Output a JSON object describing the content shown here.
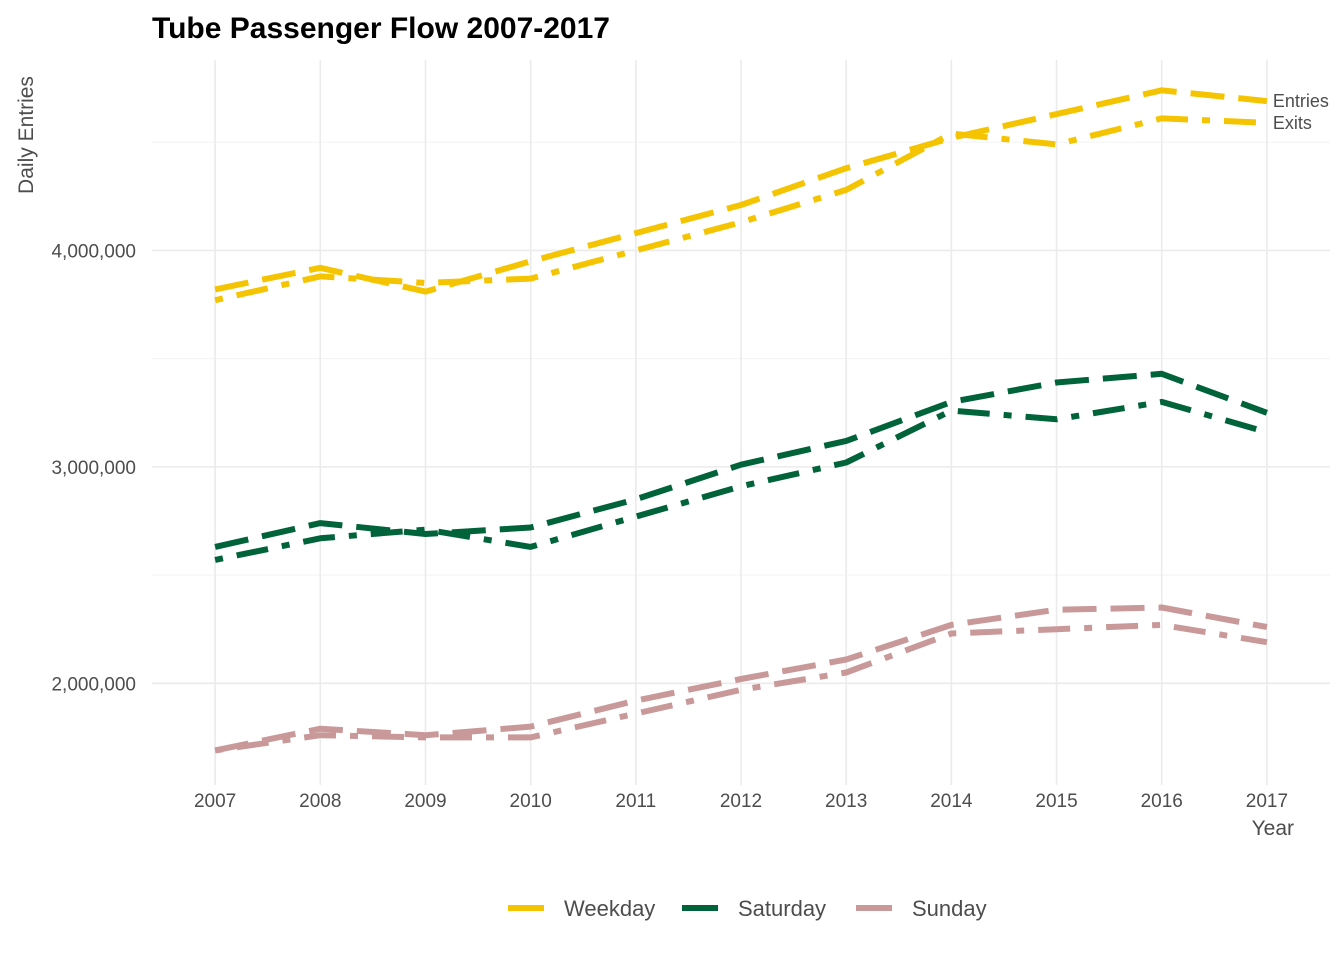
{
  "chart_data": {
    "type": "line",
    "title": "Tube Passenger Flow 2007-2017",
    "xlabel": "Year",
    "ylabel": "Daily Entries",
    "x": [
      2007,
      2008,
      2009,
      2010,
      2011,
      2012,
      2013,
      2014,
      2015,
      2016,
      2017
    ],
    "xlim": [
      2006.4,
      2017.6
    ],
    "ylim": [
      1530000,
      4880000
    ],
    "y_ticks": [
      2000000,
      3000000,
      4000000
    ],
    "y_tick_labels": [
      "2,000,000",
      "3,000,000",
      "4,000,000"
    ],
    "x_tick_labels": [
      "2007",
      "2008",
      "2009",
      "2010",
      "2011",
      "2012",
      "2013",
      "2014",
      "2015",
      "2016",
      "2017"
    ],
    "grid": true,
    "legend_position": "bottom",
    "legend": [
      {
        "label": "Weekday",
        "color": "#f5c400"
      },
      {
        "label": "Saturday",
        "color": "#00633a"
      },
      {
        "label": "Sunday",
        "color": "#c9999a"
      }
    ],
    "line_annotations": [
      {
        "text": "Entries",
        "x": 2017,
        "y": 4690000
      },
      {
        "text": "Exits",
        "x": 2017,
        "y": 4590000
      }
    ],
    "series": [
      {
        "group": "Weekday",
        "measure": "Entries",
        "color": "#f5c400",
        "dash": "long-dash",
        "values": [
          3820000,
          3920000,
          3810000,
          3950000,
          4080000,
          4210000,
          4380000,
          4520000,
          4630000,
          4740000,
          4690000
        ]
      },
      {
        "group": "Weekday",
        "measure": "Exits",
        "color": "#f5c400",
        "dash": "dot-dash",
        "values": [
          3770000,
          3880000,
          3850000,
          3870000,
          4000000,
          4130000,
          4280000,
          4540000,
          4490000,
          4610000,
          4590000
        ]
      },
      {
        "group": "Saturday",
        "measure": "Entries",
        "color": "#00633a",
        "dash": "long-dash",
        "values": [
          2630000,
          2740000,
          2690000,
          2720000,
          2850000,
          3010000,
          3120000,
          3300000,
          3390000,
          3430000,
          3250000
        ]
      },
      {
        "group": "Saturday",
        "measure": "Exits",
        "color": "#00633a",
        "dash": "dot-dash",
        "values": [
          2570000,
          2670000,
          2710000,
          2630000,
          2770000,
          2910000,
          3020000,
          3260000,
          3220000,
          3300000,
          3160000
        ]
      },
      {
        "group": "Sunday",
        "measure": "Entries",
        "color": "#c9999a",
        "dash": "long-dash",
        "values": [
          1690000,
          1790000,
          1760000,
          1800000,
          1920000,
          2020000,
          2110000,
          2270000,
          2340000,
          2350000,
          2260000
        ]
      },
      {
        "group": "Sunday",
        "measure": "Exits",
        "color": "#c9999a",
        "dash": "dot-dash",
        "values": [
          1690000,
          1760000,
          1750000,
          1750000,
          1860000,
          1970000,
          2050000,
          2230000,
          2250000,
          2270000,
          2190000
        ]
      }
    ]
  }
}
